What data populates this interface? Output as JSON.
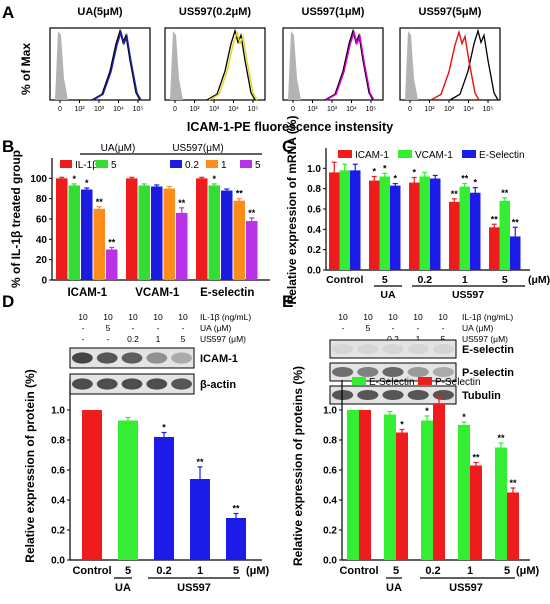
{
  "panel_a": {
    "letter": "A",
    "ylabel": "% of Max",
    "xlabel": "ICAM-1-PE fluorescence instensity",
    "xticks": [
      "0",
      "10²",
      "10³",
      "10⁴",
      "10⁵"
    ],
    "hist_titles": [
      "UA(5μM)",
      "US597(0.2μM)",
      "US597(1μM)",
      "US597(5μM)"
    ],
    "hist_colors": [
      "#1f1fb4",
      "#e8d21a",
      "#d200d2",
      "#e81010"
    ]
  },
  "panel_b": {
    "letter": "B",
    "ylabel": "% of IL-1β treated group",
    "ua_group": "UA(μM)",
    "us_group": "US597(μM)"
  },
  "panel_c": {
    "letter": "C",
    "ylabel": "Relative expression of mRNA (%)",
    "um_label": "(μM)",
    "ua_label": "UA",
    "us_label": "US597"
  },
  "panel_d": {
    "letter": "D",
    "row_labels": [
      "IL-1β (ng/mL)",
      "UA (μM)",
      "US597 (μM)"
    ],
    "rows": [
      [
        "10",
        "10",
        "10",
        "10",
        "10"
      ],
      [
        "-",
        "5",
        "-",
        "-",
        "-"
      ],
      [
        "-",
        "-",
        "0.2",
        "1",
        "5"
      ]
    ],
    "blot_labels": [
      "ICAM-1",
      "β-actin"
    ],
    "ylabel": "Relative expression of protein (%)",
    "um_label": "(μM)",
    "ua_label": "UA",
    "us_label": "US597"
  },
  "panel_e": {
    "letter": "E",
    "row_labels": [
      "IL-1β (ng/mL)",
      "UA (μM)",
      "US597 (μM)"
    ],
    "rows": [
      [
        "10",
        "10",
        "10",
        "10",
        "10"
      ],
      [
        "-",
        "5",
        "-",
        "-",
        "-"
      ],
      [
        "-",
        "-",
        "0.2",
        "1",
        "5"
      ]
    ],
    "blot_labels": [
      "E-selectin",
      "P-selectin",
      "Tubulin"
    ],
    "ylabel": "Relative expression of proteins (%)",
    "um_label": "(μM)",
    "ua_label": "UA",
    "us_label": "US597"
  },
  "chart_data": [
    {
      "id": "B",
      "type": "bar",
      "categories": [
        "ICAM-1",
        "VCAM-1",
        "E-selectin"
      ],
      "ylim": [
        0,
        120
      ],
      "yticks": [
        0,
        20,
        40,
        60,
        80,
        100
      ],
      "series": [
        {
          "name": "IL-1β",
          "color": "#ee1c1c",
          "values": [
            100,
            100,
            100
          ],
          "errors": [
            1,
            1,
            1
          ],
          "sig": [
            "",
            "",
            ""
          ]
        },
        {
          "name": "5",
          "color": "#33dd33",
          "values": [
            93,
            93,
            93
          ],
          "errors": [
            1.5,
            1.5,
            1.5
          ],
          "sig": [
            "*",
            "",
            "*"
          ]
        },
        {
          "name": "0.2",
          "color": "#1c1ce0",
          "values": [
            89,
            92,
            88
          ],
          "errors": [
            1.5,
            1.5,
            1.5
          ],
          "sig": [
            "*",
            "",
            ""
          ]
        },
        {
          "name": "1",
          "color": "#ff8c1a",
          "values": [
            70,
            90,
            78
          ],
          "errors": [
            2,
            2,
            2
          ],
          "sig": [
            "**",
            "",
            "**"
          ]
        },
        {
          "name": "5",
          "color": "#b833e8",
          "values": [
            30,
            66,
            58
          ],
          "errors": [
            2,
            5,
            3
          ],
          "sig": [
            "**",
            "**",
            "**"
          ]
        }
      ]
    },
    {
      "id": "C",
      "type": "bar",
      "categories": [
        "Control",
        "5",
        "0.2",
        "1",
        "5"
      ],
      "ylim": [
        0,
        1.2
      ],
      "yticks": [
        "0.0",
        "0.2",
        "0.4",
        "0.6",
        "0.8",
        "1.0"
      ],
      "series": [
        {
          "name": "ICAM-1",
          "color": "#ee1c1c",
          "values": [
            0.96,
            0.88,
            0.86,
            0.67,
            0.42
          ],
          "errors": [
            0.1,
            0.04,
            0.05,
            0.03,
            0.03
          ],
          "sig": [
            "",
            "*",
            "*",
            "**",
            "**"
          ]
        },
        {
          "name": "VCAM-1",
          "color": "#33ee33",
          "values": [
            0.98,
            0.92,
            0.92,
            0.82,
            0.68
          ],
          "errors": [
            0.06,
            0.03,
            0.04,
            0.03,
            0.03
          ],
          "sig": [
            "",
            "*",
            "",
            "**",
            "**"
          ]
        },
        {
          "name": "E-Selectin",
          "color": "#1c1ce8",
          "values": [
            0.98,
            0.83,
            0.9,
            0.76,
            0.33
          ],
          "errors": [
            0.06,
            0.02,
            0.03,
            0.05,
            0.09
          ],
          "sig": [
            "",
            "*",
            "",
            "*",
            "**"
          ]
        }
      ]
    },
    {
      "id": "D",
      "type": "bar",
      "categories": [
        "Control",
        "5",
        "0.2",
        "1",
        "5"
      ],
      "ylim": [
        0,
        1.2
      ],
      "yticks": [
        "0.0",
        "0.2",
        "0.4",
        "0.6",
        "0.8",
        "1.0"
      ],
      "colors": [
        "#ee1c1c",
        "#33ee33",
        "#1c1ce8",
        "#1c1ce8",
        "#1c1ce8"
      ],
      "values": [
        1.0,
        0.93,
        0.82,
        0.54,
        0.28
      ],
      "errors": [
        0,
        0.02,
        0.03,
        0.08,
        0.03
      ],
      "sig": [
        "",
        "",
        "*",
        "**",
        "**"
      ]
    },
    {
      "id": "E",
      "type": "bar",
      "categories": [
        "Control",
        "5",
        "0.2",
        "1",
        "5"
      ],
      "ylim": [
        0,
        1.2
      ],
      "yticks": [
        "0.0",
        "0.2",
        "0.4",
        "0.6",
        "0.8",
        "1.0"
      ],
      "series": [
        {
          "name": "E-Selectin",
          "color": "#33ee33",
          "values": [
            1.0,
            0.97,
            0.93,
            0.9,
            0.75
          ],
          "errors": [
            0,
            0.02,
            0.03,
            0.02,
            0.03
          ],
          "sig": [
            "",
            "",
            "*",
            "*",
            "**"
          ]
        },
        {
          "name": "P-Selectin",
          "color": "#ee1c1c",
          "values": [
            1.0,
            0.85,
            1.04,
            0.63,
            0.45
          ],
          "errors": [
            0,
            0.02,
            0.05,
            0.02,
            0.03
          ],
          "sig": [
            "",
            "*",
            "",
            "**",
            "**"
          ]
        }
      ]
    }
  ]
}
